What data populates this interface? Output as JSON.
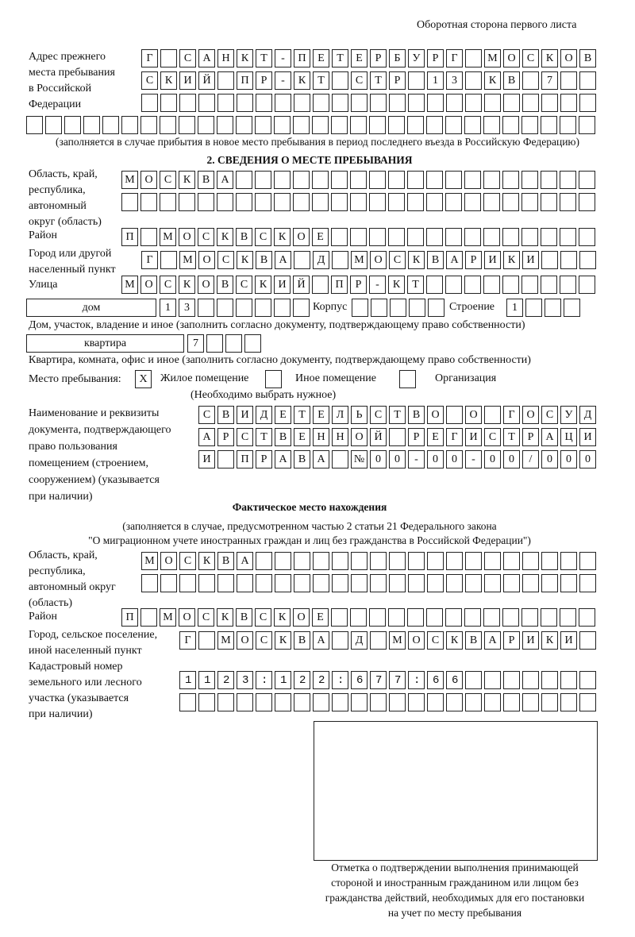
{
  "header": "Оборотная сторона первого листа",
  "prev_address": {
    "label": [
      "Адрес прежнего",
      "места пребывания",
      "в Российской",
      "Федерации"
    ],
    "rows": [
      "Г САНКТ-ПЕТЕРБУРГ МОСКОВ",
      "СКИЙ ПР-КТ СТР 13 КВ 7",
      "",
      ""
    ],
    "note": "(заполняется в случае прибытия в новое место пребывания в период последнего въезда в Российскую Федерацию)"
  },
  "section2": {
    "title": "2. СВЕДЕНИЯ О МЕСТЕ ПРЕБЫВАНИЯ",
    "region_label": [
      "Область, край,",
      "республика,",
      "автономный",
      "округ (область)"
    ],
    "region_rows": [
      "МОСКВА",
      ""
    ],
    "district_label": "Район",
    "district": "П МОСКВСКОЕ",
    "city_label": [
      "Город или другой",
      "населенный пункт"
    ],
    "city": "Г МОСКВА Д МОСКВАРИКИ",
    "street_label": "Улица",
    "street": "МОСКОВСКИЙ ПР-КТ",
    "house_type": "дом",
    "house": "13",
    "korpus_label": "Корпус",
    "korpus": "",
    "stroenie_label": "Строение",
    "stroenie": "1",
    "house_note": "Дом, участок, владение и иное (заполнить согласно документу, подтверждающему право собственности)",
    "apt_type": "квартира",
    "apt": "7",
    "apt_note": "Квартира, комната, офис и иное (заполнить согласно документу, подтверждающему право собственности)",
    "stay_label": "Место пребывания:",
    "stay_options": [
      {
        "label": "Жилое помещение",
        "mark": "Х"
      },
      {
        "label": "Иное помещение",
        "mark": ""
      },
      {
        "label": "Организация",
        "mark": ""
      }
    ],
    "stay_note": "(Необходимо выбрать нужное)",
    "doc_label": [
      "Наименование и реквизиты",
      "документа, подтверждающего",
      "право пользования",
      "помещением (строением,",
      "сооружением) (указывается",
      "при наличии)"
    ],
    "doc_rows": [
      "СВИДЕТЕЛЬСТВО О ГОСУД",
      "АРСТВЕННОЙ РЕГИСТРАЦИ",
      "И ПРАВА №00-00-00/000"
    ]
  },
  "actual": {
    "title": "Фактическое место нахождения",
    "subtitle": [
      "(заполняется в случае, предусмотренном частью 2 статьи 21 Федерального закона",
      "\"О миграционном учете иностранных граждан и лиц без гражданства в Российской Федерации\")"
    ],
    "region_label": [
      "Область, край,",
      "республика,",
      "автономный округ",
      "(область)"
    ],
    "region_rows": [
      "МОСКВА",
      ""
    ],
    "district_label": "Район",
    "district": "П МОСКВСКОЕ",
    "city_label": [
      "Город, сельское поселение,",
      "иной населенный пункт"
    ],
    "city": "Г МОСКВА Д МОСКВАРИКИ",
    "cadastre_label": [
      "Кадастровый номер",
      "земельного или лесного",
      "участка (указывается",
      "при наличии)"
    ],
    "cadastre_rows": [
      "1123:122:677:66",
      ""
    ]
  },
  "stamp_caption": [
    "Отметка о подтверждении выполнения принимающей",
    "стороной и иностранным гражданином или лицом без",
    "гражданства действий, необходимых для его постановки",
    "на учет по месту пребывания"
  ]
}
